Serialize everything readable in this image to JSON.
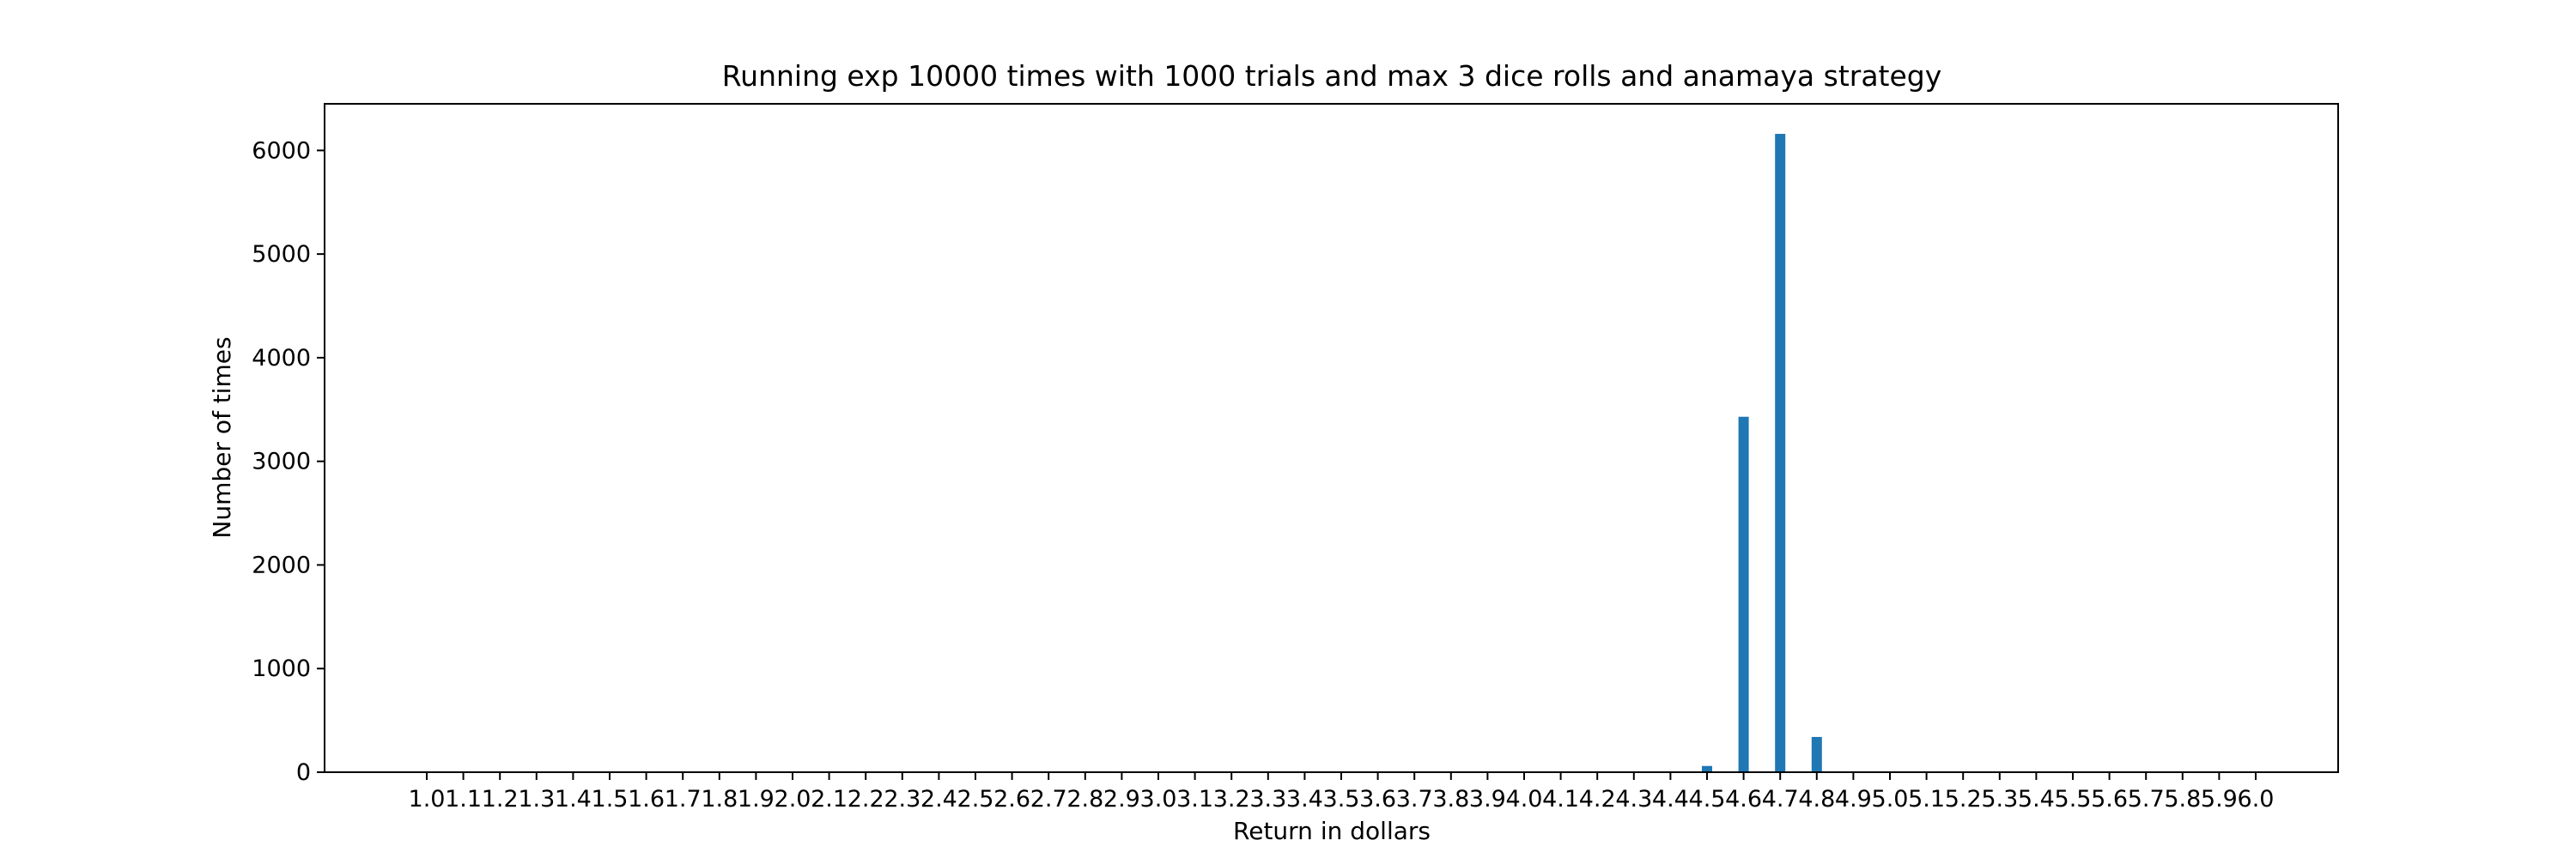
{
  "chart_data": {
    "type": "bar",
    "title": "Running exp 10000 times with 1000 trials and max 3 dice rolls and anamaya strategy",
    "xlabel": "Return in dollars",
    "ylabel": "Number of times",
    "categories": [
      "1.0",
      "1.1",
      "1.2",
      "1.3",
      "1.4",
      "1.5",
      "1.6",
      "1.7",
      "1.8",
      "1.9",
      "2.0",
      "2.1",
      "2.2",
      "2.3",
      "2.4",
      "2.5",
      "2.6",
      "2.7",
      "2.8",
      "2.9",
      "3.0",
      "3.1",
      "3.2",
      "3.3",
      "3.4",
      "3.5",
      "3.6",
      "3.7",
      "3.8",
      "3.9",
      "4.0",
      "4.1",
      "4.2",
      "4.3",
      "4.4",
      "4.5",
      "4.6",
      "4.7",
      "4.8",
      "4.9",
      "5.0",
      "5.1",
      "5.2",
      "5.3",
      "5.4",
      "5.5",
      "5.6",
      "5.7",
      "5.8",
      "5.9",
      "6.0"
    ],
    "values": [
      0,
      0,
      0,
      0,
      0,
      0,
      0,
      0,
      0,
      0,
      0,
      0,
      0,
      0,
      0,
      0,
      0,
      0,
      0,
      0,
      0,
      0,
      0,
      0,
      0,
      0,
      0,
      0,
      0,
      0,
      0,
      0,
      0,
      0,
      0,
      60,
      3430,
      6160,
      340,
      0,
      0,
      0,
      0,
      0,
      0,
      0,
      0,
      0,
      0,
      0,
      0
    ],
    "ylim": [
      0,
      6450
    ],
    "yticks": [
      0,
      1000,
      2000,
      3000,
      4000,
      5000,
      6000
    ],
    "ytick_labels": [
      "0",
      "1000",
      "2000",
      "3000",
      "4000",
      "5000",
      "6000"
    ],
    "bar_color": "#1f77b4",
    "grid": false,
    "legend": "none"
  }
}
